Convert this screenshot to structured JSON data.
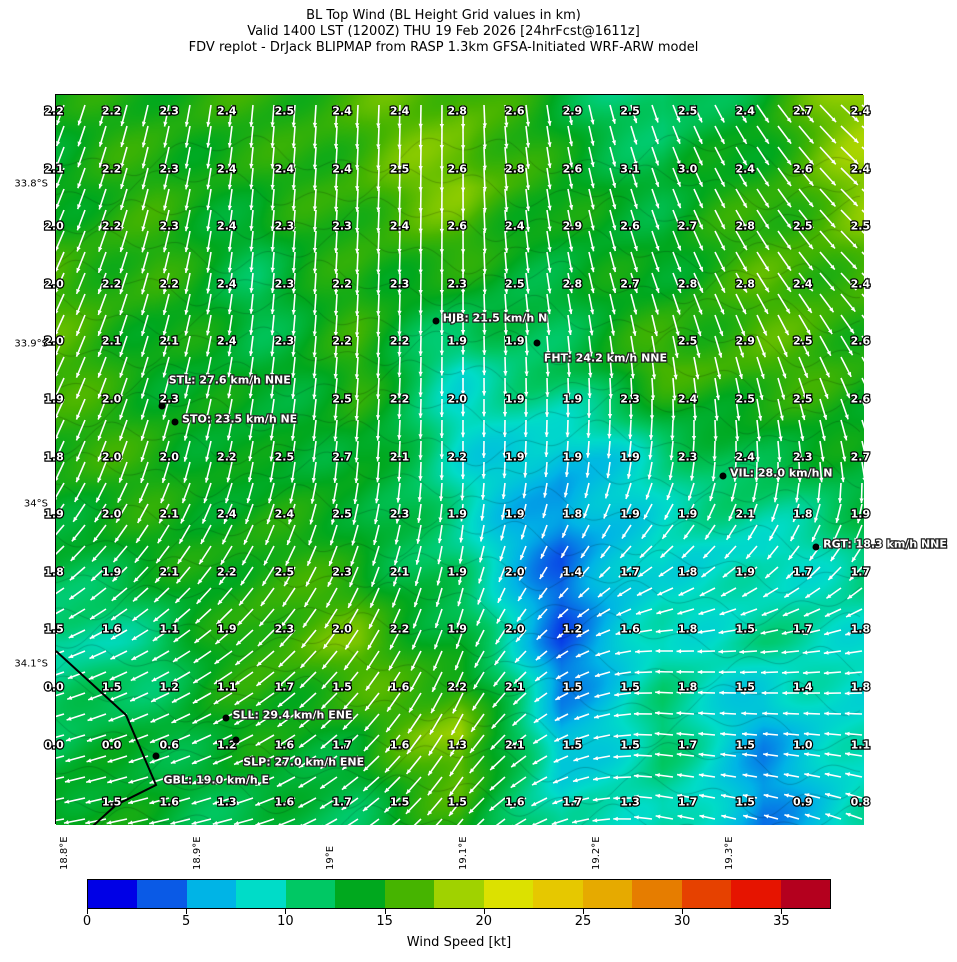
{
  "title_lines": [
    "BL Top Wind (BL Height Grid values in km)",
    "Valid 1400 LST (1200Z) THU 19 Feb 2026 [24hrFcst@1611z]",
    "FDV replot - DrJack BLIPMAP from RASP 1.3km GFSA-Initiated WRF-ARW model"
  ],
  "chart_data": {
    "type": "heatmap",
    "title": "BL Top Wind (BL Height Grid values in km)",
    "x_axis": {
      "ticks": [
        18.8,
        18.9,
        19.0,
        19.1,
        19.2,
        19.3
      ],
      "tick_labels": [
        "18.8°E",
        "18.9°E",
        "19°E",
        "19.1°E",
        "19.2°E",
        "19.3°E"
      ]
    },
    "y_axis": {
      "ticks": [
        -33.8,
        -33.9,
        -34.0,
        -34.1
      ],
      "tick_labels": [
        "33.8°S",
        "33.9°S",
        "34°S",
        "34.1°S"
      ]
    },
    "bl_height_grid_km": [
      [
        "2.2",
        "2.2",
        "2.3",
        "2.4",
        "2.5",
        "2.4",
        "2.4",
        "2.8",
        "2.6",
        "2.9",
        "2.5",
        "2.5",
        "2.4",
        "2.7",
        "2.4"
      ],
      [
        "2.1",
        "2.2",
        "2.3",
        "2.4",
        "2.4",
        "2.4",
        "2.5",
        "2.6",
        "2.8",
        "2.6",
        "3.1",
        "3.0",
        "2.4",
        "2.6",
        "2.4"
      ],
      [
        "2.0",
        "2.2",
        "2.3",
        "2.4",
        "2.3",
        "2.3",
        "2.4",
        "2.6",
        "2.4",
        "2.9",
        "2.6",
        "2.7",
        "2.8",
        "2.5",
        "2.5"
      ],
      [
        "2.0",
        "2.2",
        "2.2",
        "2.4",
        "2.3",
        "2.2",
        "2.3",
        "2.3",
        "2.5",
        "2.8",
        "2.7",
        "2.8",
        "2.8",
        "2.4",
        "2.4"
      ],
      [
        "2.0",
        "2.1",
        "2.1",
        "2.4",
        "2.3",
        "2.2",
        "2.2",
        "1.9",
        "1.9",
        null,
        null,
        "2.5",
        "2.9",
        "2.5",
        "2.6"
      ],
      [
        "1.9",
        "2.0",
        "2.3",
        null,
        null,
        "2.5",
        "2.2",
        "2.0",
        "1.9",
        "1.9",
        "2.3",
        "2.4",
        "2.5",
        "2.5",
        "2.6"
      ],
      [
        "1.8",
        "2.0",
        "2.0",
        "2.2",
        "2.5",
        "2.7",
        "2.1",
        "2.2",
        "1.9",
        "1.9",
        "1.9",
        "2.3",
        "2.4",
        "2.3",
        "2.7"
      ],
      [
        "1.9",
        "2.0",
        "2.1",
        "2.4",
        "2.4",
        "2.5",
        "2.3",
        "1.9",
        "1.9",
        "1.8",
        "1.9",
        "1.9",
        "2.1",
        "1.8",
        "1.9"
      ],
      [
        "1.8",
        "1.9",
        "2.1",
        "2.2",
        "2.5",
        "2.3",
        "2.1",
        "1.9",
        "2.0",
        "1.4",
        "1.7",
        "1.8",
        "1.9",
        "1.7",
        "1.7"
      ],
      [
        "1.5",
        "1.6",
        "1.1",
        "1.9",
        "2.3",
        "2.0",
        "2.2",
        "1.9",
        "2.0",
        "1.2",
        "1.6",
        "1.8",
        "1.5",
        "1.7",
        "1.8"
      ],
      [
        "0.0",
        "1.5",
        "1.2",
        "1.1",
        "1.7",
        "1.5",
        "1.6",
        "2.2",
        "2.1",
        "1.5",
        "1.5",
        "1.8",
        "1.5",
        "1.4",
        "1.8"
      ],
      [
        "0.0",
        "0.0",
        "0.6",
        "1.2",
        "1.6",
        "1.7",
        "1.6",
        "1.3",
        "2.1",
        "1.5",
        "1.5",
        "1.7",
        "1.5",
        "1.0",
        "1.1"
      ],
      [
        null,
        "1.5",
        "1.6",
        "1.3",
        "1.6",
        "1.7",
        "1.5",
        "1.5",
        "1.6",
        "1.7",
        "1.3",
        "1.7",
        "1.5",
        "0.9",
        "0.8"
      ]
    ],
    "stations": [
      {
        "label": "HJB: 21.5 km/h N",
        "lon": 19.078,
        "lat": -33.885
      },
      {
        "label": "FHT: 24.2 km/h NNE",
        "lon": 19.154,
        "lat": -33.899
      },
      {
        "label": "STL: 27.6 km/h NNE",
        "lon": 18.872,
        "lat": -33.938
      },
      {
        "label": "STO: 23.5 km/h NE",
        "lon": 18.882,
        "lat": -33.948
      },
      {
        "label": "VIL: 28.0 km/h N",
        "lon": 19.294,
        "lat": -33.982
      },
      {
        "label": "RGT: 18.3 km/h NNE",
        "lon": 19.364,
        "lat": -34.026
      },
      {
        "label": "SLL: 29.4 km/h ENE",
        "lon": 18.92,
        "lat": -34.133
      },
      {
        "label": "SLP: 27.0 km/h ENE",
        "lon": 18.928,
        "lat": -34.147
      },
      {
        "label": "GBL: 19.0 km/h E",
        "lon": 18.868,
        "lat": -34.157
      }
    ],
    "colorbar": {
      "label": "Wind Speed [kt]",
      "range": [
        0,
        37.5
      ],
      "ticks": [
        "0",
        "5",
        "10",
        "15",
        "20",
        "25",
        "30",
        "35"
      ],
      "colors": [
        "#0000e6",
        "#0a5ae6",
        "#00b4e6",
        "#00dcc8",
        "#00c864",
        "#00a81e",
        "#46b400",
        "#a0d200",
        "#dce100",
        "#e6c800",
        "#e6aa00",
        "#e67d00",
        "#e64100",
        "#e61400",
        "#b4001e"
      ]
    }
  }
}
